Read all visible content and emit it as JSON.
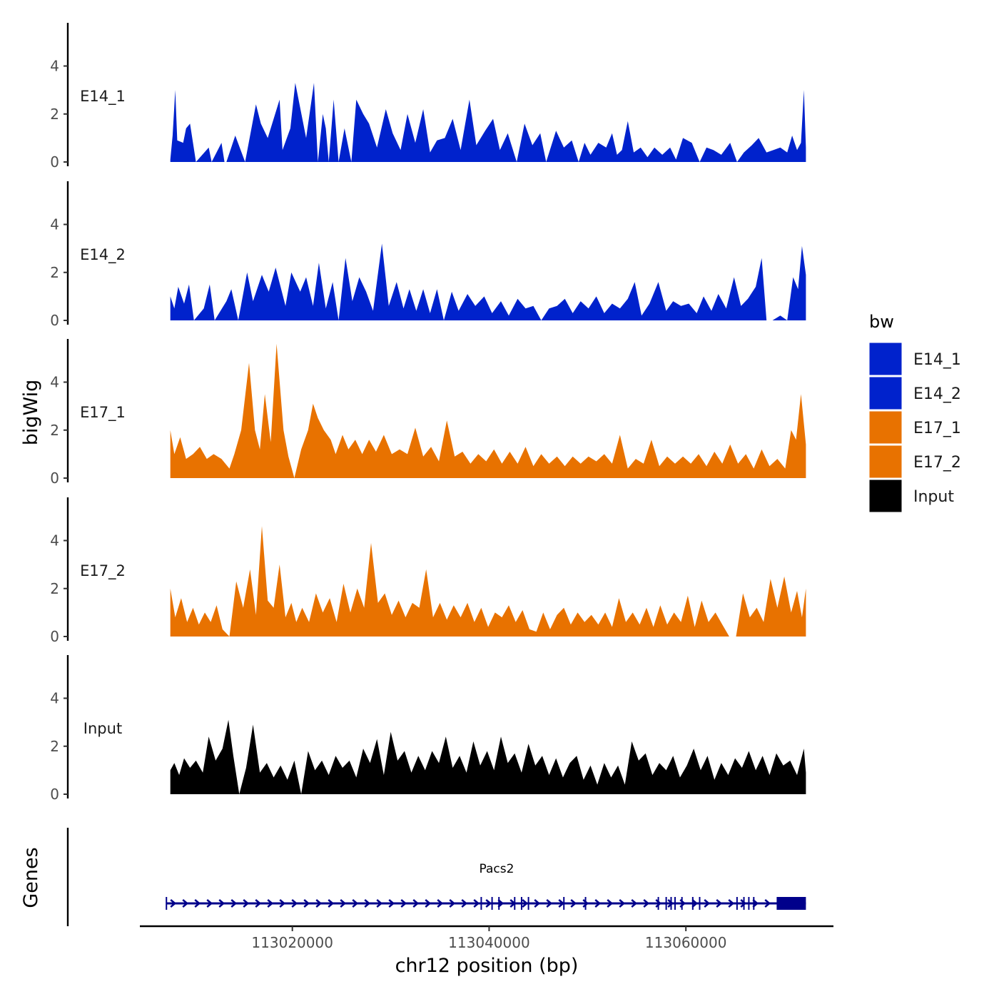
{
  "chart_data": {
    "type": "area",
    "title": "",
    "xlabel": "chr12 position (bp)",
    "ylabel": "bigWig",
    "genes_track_label": "Genes",
    "xlim": [
      113004500,
      113075000
    ],
    "xrange_data": [
      113007600,
      113072200
    ],
    "x_ticks": [
      113020000,
      113040000,
      113060000
    ],
    "x_tick_labels": [
      "113020000",
      "113040000",
      "113060000"
    ],
    "ylim": [
      0,
      5.8
    ],
    "y_ticks": [
      0,
      2,
      4
    ],
    "y_tick_labels": [
      "0",
      "2",
      "4"
    ],
    "colors": {
      "E14_1": "#0022cc",
      "E14_2": "#0022cc",
      "E17_1": "#e87200",
      "E17_2": "#e87200",
      "Input": "#000000",
      "gene": "#00008b"
    },
    "series": [
      {
        "name": "E14_1",
        "color": "#0022cc",
        "x": [
          113007600,
          113007830,
          113008100,
          113008300,
          113008900,
          113009200,
          113009600,
          113010200,
          113011500,
          113011800,
          113012800,
          113013100,
          113013300,
          113014200,
          113015200,
          113016300,
          113016800,
          113017500,
          113018700,
          113019000,
          113019800,
          113020300,
          113021400,
          113022200,
          113022600,
          113023100,
          113023400,
          113023700,
          113024200,
          113024700,
          113025300,
          113026000,
          113026500,
          113027200,
          113027800,
          113028600,
          113029500,
          113030200,
          113031000,
          113031700,
          113032500,
          113033300,
          113034000,
          113034700,
          113035500,
          113036300,
          113037100,
          113038000,
          113038700,
          113039600,
          113040400,
          113041100,
          113041900,
          113042800,
          113043600,
          113044400,
          113045200,
          113045800,
          113046800,
          113047600,
          113048400,
          113049100,
          113049700,
          113050300,
          113051100,
          113051900,
          113052500,
          113053000,
          113053500,
          113054100,
          113054700,
          113055400,
          113056100,
          113056800,
          113057600,
          113058400,
          113059000,
          113059700,
          113060600,
          113061400,
          113062100,
          113062800,
          113063600,
          113064500,
          113065200,
          113065900,
          113066700,
          113067400,
          113068200,
          113068900,
          113069600,
          113070300,
          113070800,
          113071300,
          113071700,
          113072000,
          113072200
        ],
        "y": [
          0.1,
          1.1,
          3.0,
          0.9,
          0.8,
          1.4,
          1.6,
          0.0,
          0.6,
          0.0,
          0.8,
          0.0,
          0.0,
          1.1,
          0.0,
          2.4,
          1.6,
          1.0,
          2.6,
          0.5,
          1.4,
          3.3,
          1.0,
          3.3,
          0.0,
          2.0,
          1.4,
          0.0,
          2.6,
          0.0,
          1.4,
          0.0,
          2.6,
          2.0,
          1.6,
          0.6,
          2.2,
          1.2,
          0.5,
          2.0,
          0.8,
          2.2,
          0.4,
          0.9,
          1.0,
          1.8,
          0.5,
          2.6,
          0.7,
          1.3,
          1.8,
          0.5,
          1.2,
          0.0,
          1.6,
          0.7,
          1.2,
          0.0,
          1.3,
          0.6,
          0.9,
          0.0,
          0.8,
          0.3,
          0.8,
          0.6,
          1.2,
          0.3,
          0.5,
          1.7,
          0.4,
          0.6,
          0.2,
          0.6,
          0.3,
          0.6,
          0.1,
          1.0,
          0.8,
          0.0,
          0.6,
          0.5,
          0.3,
          0.8,
          0.0,
          0.4,
          0.7,
          1.0,
          0.4,
          0.5,
          0.6,
          0.4,
          1.1,
          0.5,
          0.8,
          3.0,
          0.6
        ]
      },
      {
        "name": "E14_2",
        "color": "#0022cc",
        "x": [
          113007600,
          113008000,
          113008400,
          113009000,
          113009500,
          113010000,
          113011000,
          113011600,
          113012100,
          113013300,
          113013800,
          113014500,
          113015400,
          113016000,
          113016900,
          113017600,
          113018300,
          113019300,
          113019900,
          113020800,
          113021400,
          113022100,
          113022700,
          113023400,
          113024100,
          113024700,
          113025400,
          113026100,
          113026800,
          113027500,
          113028200,
          113029100,
          113029800,
          113030600,
          113031300,
          113031900,
          113032600,
          113033300,
          113034000,
          113034700,
          113035400,
          113036200,
          113036900,
          113037800,
          113038600,
          113039500,
          113040300,
          113041200,
          113042000,
          113042900,
          113043700,
          113044500,
          113045300,
          113046100,
          113046900,
          113047700,
          113048500,
          113049300,
          113050100,
          113050900,
          113051700,
          113052500,
          113053300,
          113054100,
          113054800,
          113055500,
          113056300,
          113057200,
          113058000,
          113058700,
          113059500,
          113060300,
          113061100,
          113061800,
          113062600,
          113063300,
          113064100,
          113064900,
          113065600,
          113066300,
          113067100,
          113067700,
          113068200,
          113068800,
          113069600,
          113070300,
          113070900,
          113071400,
          113071800,
          113072200
        ],
        "y": [
          1.0,
          0.5,
          1.4,
          0.7,
          1.5,
          0.0,
          0.5,
          1.5,
          0.0,
          0.8,
          1.3,
          0.0,
          2.0,
          0.8,
          1.9,
          1.2,
          2.2,
          0.6,
          2.0,
          1.2,
          1.8,
          0.6,
          2.4,
          0.5,
          1.6,
          0.0,
          2.6,
          0.8,
          1.8,
          1.2,
          0.4,
          3.2,
          0.6,
          1.6,
          0.5,
          1.3,
          0.4,
          1.3,
          0.3,
          1.3,
          0.0,
          1.2,
          0.4,
          1.1,
          0.6,
          1.0,
          0.3,
          0.8,
          0.2,
          0.9,
          0.5,
          0.6,
          0.0,
          0.5,
          0.6,
          0.9,
          0.3,
          0.8,
          0.5,
          1.0,
          0.3,
          0.7,
          0.5,
          0.9,
          1.6,
          0.2,
          0.7,
          1.6,
          0.4,
          0.8,
          0.6,
          0.7,
          0.3,
          1.0,
          0.4,
          1.1,
          0.5,
          1.8,
          0.6,
          0.9,
          1.4,
          2.6,
          0.0,
          0.0,
          0.2,
          0.0,
          1.8,
          1.3,
          3.1,
          1.9
        ]
      },
      {
        "name": "E17_1",
        "color": "#e87200",
        "x": [
          113007600,
          113008000,
          113008600,
          113009200,
          113009900,
          113010600,
          113011300,
          113012000,
          113012800,
          113013600,
          113014100,
          113014800,
          113015600,
          113016200,
          113016700,
          113017200,
          113017800,
          113018400,
          113019100,
          113019600,
          113020200,
          113020900,
          113021600,
          113022100,
          113022600,
          113023200,
          113023900,
          113024400,
          113025100,
          113025700,
          113026400,
          113027100,
          113027800,
          113028500,
          113029300,
          113030100,
          113030900,
          113031700,
          113032500,
          113033300,
          113034100,
          113034900,
          113035700,
          113036500,
          113037300,
          113038100,
          113038900,
          113039700,
          113040500,
          113041300,
          113042100,
          113042900,
          113043700,
          113044500,
          113045300,
          113046100,
          113046900,
          113047700,
          113048500,
          113049300,
          113050100,
          113050900,
          113051700,
          113052500,
          113053300,
          113054100,
          113054900,
          113055700,
          113056500,
          113057300,
          113058100,
          113058900,
          113059700,
          113060500,
          113061300,
          113062100,
          113062900,
          113063700,
          113064500,
          113065300,
          113066100,
          113066900,
          113067700,
          113068500,
          113069300,
          113070100,
          113070700,
          113071200,
          113071700,
          113072200
        ],
        "y": [
          2.0,
          1.0,
          1.7,
          0.8,
          1.0,
          1.3,
          0.8,
          1.0,
          0.8,
          0.4,
          1.0,
          2.0,
          4.8,
          2.0,
          1.2,
          3.5,
          1.5,
          5.6,
          2.0,
          0.9,
          0.0,
          1.2,
          2.0,
          3.1,
          2.5,
          2.0,
          1.6,
          1.0,
          1.8,
          1.2,
          1.6,
          1.0,
          1.6,
          1.1,
          1.8,
          1.0,
          1.2,
          1.0,
          2.1,
          0.9,
          1.3,
          0.7,
          2.4,
          0.9,
          1.1,
          0.6,
          1.0,
          0.7,
          1.2,
          0.6,
          1.1,
          0.6,
          1.3,
          0.5,
          1.0,
          0.6,
          0.9,
          0.5,
          0.9,
          0.6,
          0.9,
          0.7,
          1.0,
          0.6,
          1.8,
          0.4,
          0.8,
          0.6,
          1.6,
          0.5,
          0.9,
          0.6,
          0.9,
          0.6,
          1.0,
          0.5,
          1.1,
          0.6,
          1.4,
          0.6,
          1.0,
          0.4,
          1.2,
          0.5,
          0.8,
          0.4,
          2.0,
          1.6,
          3.5,
          1.4
        ]
      },
      {
        "name": "E17_2",
        "color": "#e87200",
        "x": [
          113007600,
          113008100,
          113008700,
          113009300,
          113009900,
          113010500,
          113011100,
          113011700,
          113012300,
          113012900,
          113013600,
          113014300,
          113015000,
          113015700,
          113016300,
          113016900,
          113017500,
          113018100,
          113018700,
          113019300,
          113019900,
          113020400,
          113021000,
          113021700,
          113022400,
          113023100,
          113023800,
          113024500,
          113025200,
          113025900,
          113026600,
          113027300,
          113028000,
          113028700,
          113029400,
          113030100,
          113030800,
          113031500,
          113032200,
          113032900,
          113033600,
          113034300,
          113035000,
          113035700,
          113036400,
          113037100,
          113037800,
          113038500,
          113039200,
          113039900,
          113040600,
          113041300,
          113042000,
          113042700,
          113043400,
          113044100,
          113044800,
          113045500,
          113046200,
          113046900,
          113047600,
          113048300,
          113049000,
          113049700,
          113050400,
          113051100,
          113051800,
          113052500,
          113053200,
          113053900,
          113054600,
          113055300,
          113056000,
          113056700,
          113057400,
          113058100,
          113058800,
          113059500,
          113060200,
          113060900,
          113061600,
          113062300,
          113063000,
          113063700,
          113064400,
          113065100,
          113065800,
          113066500,
          113067200,
          113067900,
          113068600,
          113069300,
          113070000,
          113070700,
          113071300,
          113071800,
          113072200
        ],
        "y": [
          2.0,
          0.8,
          1.6,
          0.6,
          1.2,
          0.5,
          1.0,
          0.6,
          1.3,
          0.3,
          0.0,
          2.3,
          1.2,
          2.8,
          0.9,
          4.6,
          1.5,
          1.2,
          3.0,
          0.8,
          1.4,
          0.6,
          1.2,
          0.6,
          1.8,
          1.0,
          1.6,
          0.6,
          2.2,
          1.0,
          2.0,
          1.2,
          3.9,
          1.4,
          1.8,
          0.9,
          1.5,
          0.8,
          1.4,
          1.2,
          2.8,
          0.8,
          1.4,
          0.7,
          1.3,
          0.8,
          1.4,
          0.6,
          1.2,
          0.4,
          1.0,
          0.8,
          1.3,
          0.6,
          1.1,
          0.3,
          0.2,
          1.0,
          0.3,
          0.9,
          1.2,
          0.5,
          1.0,
          0.6,
          0.9,
          0.5,
          1.0,
          0.4,
          1.6,
          0.6,
          1.0,
          0.5,
          1.2,
          0.4,
          1.3,
          0.5,
          1.0,
          0.6,
          1.7,
          0.4,
          1.5,
          0.6,
          1.0,
          0.5,
          0.0,
          0.0,
          1.8,
          0.8,
          1.2,
          0.6,
          2.4,
          1.2,
          2.5,
          1.0,
          1.9,
          0.8,
          2.0
        ]
      },
      {
        "name": "Input",
        "color": "#000000",
        "x": [
          113007600,
          113008000,
          113008500,
          113009000,
          113009600,
          113010200,
          113010900,
          113011500,
          113012200,
          113012900,
          113013500,
          113014000,
          113014600,
          113015300,
          113016000,
          113016700,
          113017400,
          113018100,
          113018800,
          113019500,
          113020200,
          113020900,
          113021600,
          113022300,
          113023000,
          113023700,
          113024400,
          113025100,
          113025800,
          113026500,
          113027200,
          113027900,
          113028600,
          113029300,
          113030000,
          113030700,
          113031400,
          113032100,
          113032800,
          113033500,
          113034200,
          113034900,
          113035600,
          113036300,
          113037000,
          113037700,
          113038400,
          113039100,
          113039800,
          113040500,
          113041200,
          113041900,
          113042600,
          113043300,
          113044000,
          113044700,
          113045400,
          113046100,
          113046800,
          113047500,
          113048200,
          113048900,
          113049600,
          113050300,
          113051000,
          113051700,
          113052400,
          113053100,
          113053800,
          113054500,
          113055200,
          113055900,
          113056600,
          113057300,
          113058000,
          113058700,
          113059400,
          113060100,
          113060800,
          113061500,
          113062200,
          113062900,
          113063600,
          113064300,
          113065000,
          113065700,
          113066400,
          113067100,
          113067800,
          113068500,
          113069200,
          113069900,
          113070600,
          113071300,
          113072000,
          113072200
        ],
        "y": [
          1.0,
          1.3,
          0.8,
          1.5,
          1.1,
          1.4,
          0.9,
          2.4,
          1.4,
          1.9,
          3.1,
          1.6,
          0.0,
          1.1,
          2.9,
          0.9,
          1.3,
          0.7,
          1.2,
          0.6,
          1.4,
          0.0,
          1.8,
          1.0,
          1.4,
          0.8,
          1.6,
          1.1,
          1.4,
          0.7,
          1.9,
          1.3,
          2.3,
          0.8,
          2.6,
          1.4,
          1.8,
          0.9,
          1.6,
          1.0,
          1.8,
          1.3,
          2.4,
          1.1,
          1.6,
          0.9,
          2.2,
          1.2,
          1.8,
          1.0,
          2.4,
          1.3,
          1.7,
          0.9,
          2.1,
          1.2,
          1.6,
          0.8,
          1.5,
          0.7,
          1.3,
          1.6,
          0.6,
          1.2,
          0.4,
          1.3,
          0.7,
          1.2,
          0.4,
          2.2,
          1.4,
          1.7,
          0.8,
          1.3,
          1.0,
          1.6,
          0.7,
          1.2,
          1.9,
          1.0,
          1.6,
          0.6,
          1.3,
          0.8,
          1.5,
          1.1,
          1.8,
          1.0,
          1.6,
          0.8,
          1.7,
          1.2,
          1.4,
          0.8,
          1.9,
          0.9
        ]
      }
    ],
    "legend": {
      "title": "bw",
      "position": "right",
      "entries": [
        "E14_1",
        "E14_2",
        "E17_1",
        "E17_2",
        "Input"
      ]
    },
    "gene": {
      "name": "Pacs2",
      "start": 113007200,
      "end": 113072200,
      "strand": "+",
      "exon_starts": [
        113007200,
        113039200,
        113040300,
        113041000,
        113042600,
        113043300,
        113044000,
        113047600,
        113049800,
        113057200,
        113058000,
        113058500,
        113058900,
        113059600,
        113060700,
        113061400,
        113065200,
        113065900,
        113066400,
        113066900,
        113069300
      ]
    }
  }
}
